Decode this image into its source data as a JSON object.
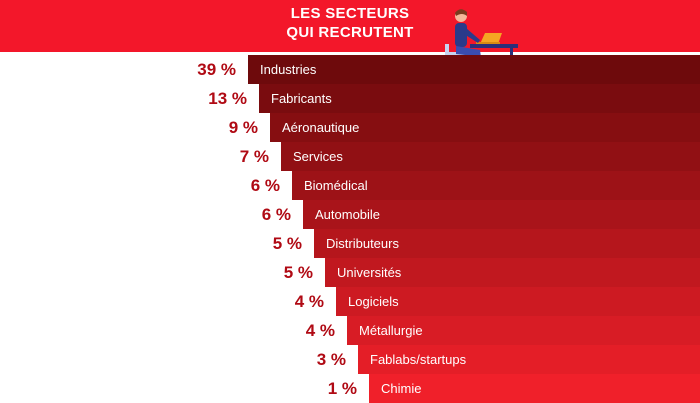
{
  "header": {
    "title_line1": "LES SECTEURS",
    "title_line2": "QUI RECRUTENT"
  },
  "colors": {
    "header": "#f3172a",
    "percent_text": "#b00a14",
    "label_text": "#ffffff",
    "bar_dark": "#6e0a0c",
    "bar_light": "#f0202a"
  },
  "chart_data": {
    "type": "bar",
    "title": "LES SECTEURS QUI RECRUTENT",
    "categories": [
      "Industries",
      "Fabricants",
      "Aéronautique",
      "Services",
      "Biomédical",
      "Automobile",
      "Distributeurs",
      "Universités",
      "Logiciels",
      "Métallurgie",
      "Fablabs/startups",
      "Chimie"
    ],
    "values": [
      39,
      13,
      9,
      7,
      6,
      6,
      5,
      5,
      4,
      4,
      3,
      1
    ],
    "value_labels": [
      "39 %",
      "13 %",
      "9 %",
      "7 %",
      "6 %",
      "6 %",
      "5 %",
      "5 %",
      "4 %",
      "4 %",
      "3 %",
      "1 %"
    ],
    "unit": "%",
    "legend": "none",
    "grid": false
  }
}
